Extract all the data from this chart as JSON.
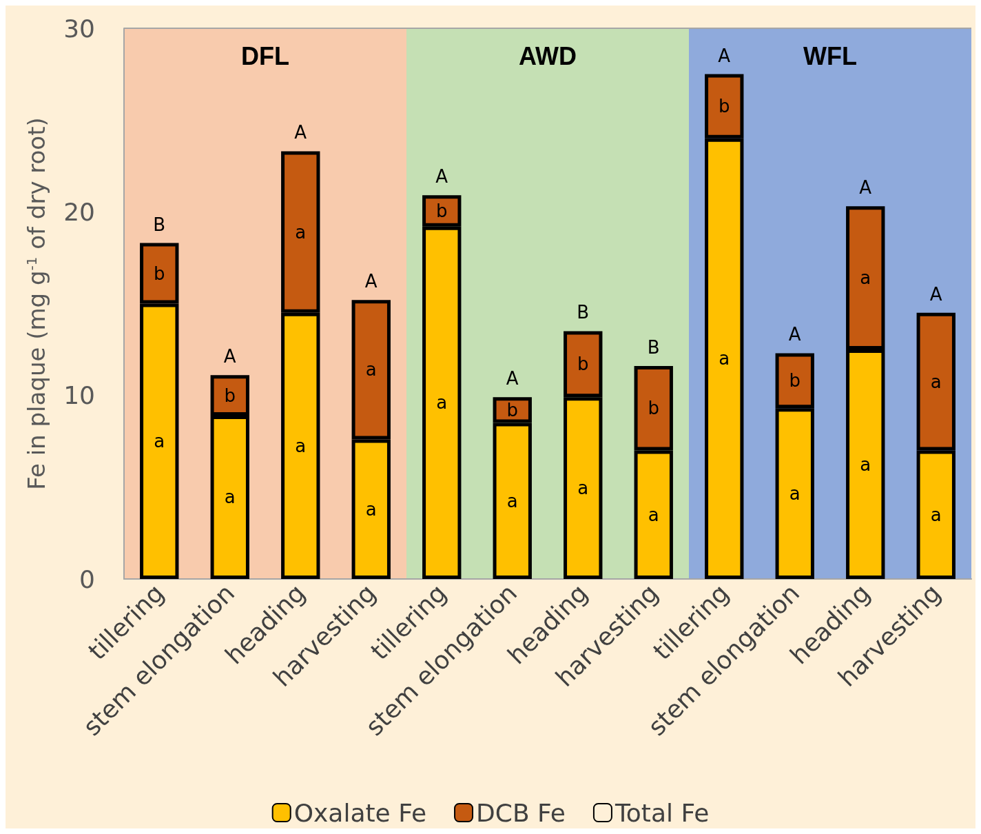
{
  "chart_data": {
    "type": "bar",
    "ylabel": "Fe in plaque (mg g$^{-1}$ of dry root)",
    "categories": [
      "tillering",
      "stem elongation",
      "heading",
      "harvesting",
      "tillering",
      "stem elongation",
      "heading",
      "harvesting",
      "tillering",
      "stem elongation",
      "heading",
      "harvesting"
    ],
    "series": [
      {
        "name": "Oxalate Fe",
        "color": "#ffc000",
        "values": [
          15.0,
          8.9,
          14.5,
          7.6,
          19.2,
          8.5,
          9.9,
          7.0,
          24.0,
          9.3,
          12.5,
          7.0
        ],
        "value_labels": [
          "a",
          "a",
          "a",
          "a",
          "a",
          "a",
          "a",
          "a",
          "a",
          "a",
          "a",
          "a"
        ]
      },
      {
        "name": "DCB Fe",
        "color": "#c55a11",
        "values": [
          3.3,
          2.2,
          8.8,
          7.6,
          1.7,
          1.4,
          3.6,
          4.6,
          3.5,
          3.0,
          7.8,
          7.5
        ],
        "value_labels": [
          "b",
          "b",
          "a",
          "a",
          "b",
          "b",
          "b",
          "b",
          "b",
          "b",
          "a",
          "a"
        ]
      },
      {
        "name": "Total Fe",
        "color": "#000000",
        "values": [
          null,
          null,
          null,
          null,
          null,
          null,
          null,
          null,
          null,
          null,
          null,
          null
        ]
      }
    ],
    "totals": [
      "B",
      "A",
      "A",
      "A",
      "A",
      "A",
      "B",
      "B",
      "A",
      "A",
      "A",
      "A"
    ],
    "stacked": true,
    "ylim": [
      0,
      30
    ],
    "yticks": [
      0,
      10,
      20,
      30
    ],
    "legend": "bottom",
    "annotations": [
      "DFL",
      "AWD",
      "WFL"
    ]
  }
}
